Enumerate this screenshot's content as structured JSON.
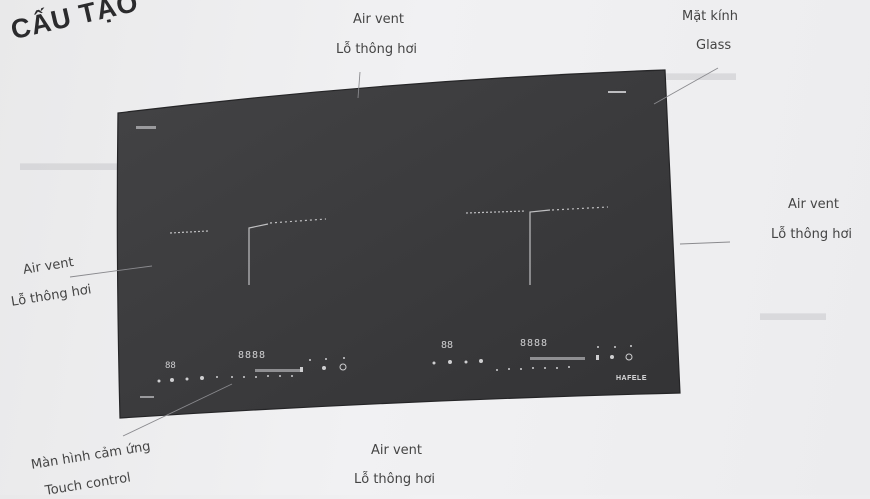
{
  "title": "CẤU TẠO",
  "labels": {
    "top_air_vent_en": "Air vent",
    "top_air_vent_vi": "Lỗ thông hơi",
    "glass_vi": "Mặt kính",
    "glass_en": "Glass",
    "right_air_vent_en": "Air vent",
    "right_air_vent_vi": "Lỗ thông hơi",
    "left_air_vent_en": "Air vent",
    "left_air_vent_vi": "Lỗ thông hơi",
    "touch_vi": "Màn hình cảm ứng",
    "touch_en": "Touch control",
    "bottom_air_vent_en": "Air vent",
    "bottom_air_vent_vi": "Lỗ thông hơi"
  },
  "cooktop": {
    "brand": "HAFELE",
    "left_display": "8888",
    "left_small_display": "88",
    "right_display": "8888",
    "right_small_display": "88"
  },
  "colors": {
    "glass": "#3b3b3d",
    "background": "#ededef",
    "leader_line": "#8a8a8e"
  }
}
